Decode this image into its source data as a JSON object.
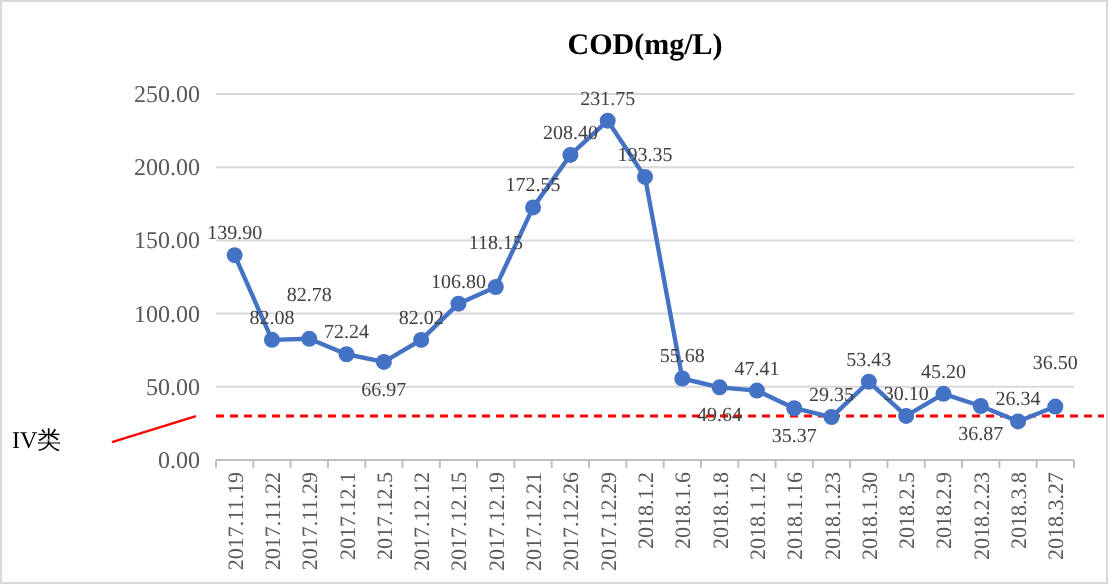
{
  "chart_data": {
    "type": "line",
    "title": "COD(mg/L)",
    "categories": [
      "2017.11.19",
      "2017.11.22",
      "2017.11.29",
      "2017.12.1",
      "2017.12.5",
      "2017.12.12",
      "2017.12.15",
      "2017.12.19",
      "2017.12.21",
      "2017.12.26",
      "2017.12.29",
      "2018.1.2",
      "2018.1.6",
      "2018.1.8",
      "2018.1.12",
      "2018.1.16",
      "2018.1.23",
      "2018.1.30",
      "2018.2.5",
      "2018.2.9",
      "2018.2.23",
      "2018.3.8",
      "2018.3.27"
    ],
    "series": [
      {
        "color": "#4472c4",
        "values": [
          139.9,
          82.08,
          82.78,
          72.24,
          66.97,
          82.02,
          106.8,
          118.15,
          172.55,
          208.4,
          231.75,
          193.35,
          55.68,
          49.64,
          47.41,
          35.37,
          29.35,
          53.43,
          30.1,
          45.2,
          36.87,
          26.34,
          36.5
        ],
        "value_labels": [
          "139.90",
          "82.08",
          "82.78",
          "72.24",
          "66.97",
          "82.02",
          "106.80",
          "118.15",
          "172.55",
          "208.40",
          "231.75",
          "193.35",
          "55.68",
          "49.64",
          "47.41",
          "35.37",
          "29.35",
          "53.43",
          "30.10",
          "45.20",
          "36.87",
          "26.34",
          "36.50"
        ]
      }
    ],
    "ylim": [
      0,
      250
    ],
    "yticks": [
      {
        "value": 0,
        "label": "0.00"
      },
      {
        "value": 50,
        "label": "50.00"
      },
      {
        "value": 100,
        "label": "100.00"
      },
      {
        "value": 150,
        "label": "150.00"
      },
      {
        "value": 200,
        "label": "200.00"
      },
      {
        "value": 250,
        "label": "250.00"
      }
    ],
    "grid": "y",
    "marker": "circle",
    "line_style": "solid",
    "ref_lines": [
      {
        "axis": "y",
        "value": 30,
        "label": "IV类",
        "color": "#ff0000",
        "line_style": "dashed"
      }
    ]
  }
}
